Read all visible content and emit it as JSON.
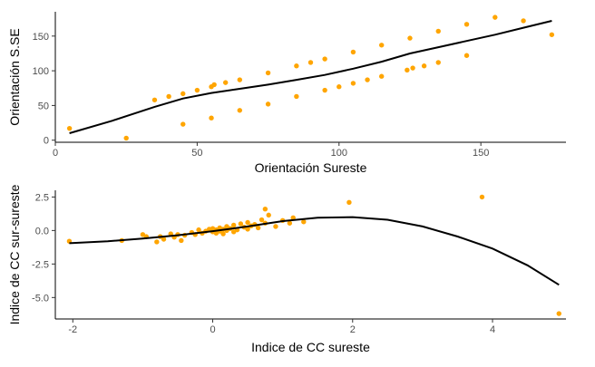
{
  "chart_data": [
    {
      "type": "scatter",
      "xlabel": "Orientación Sureste",
      "ylabel": "Orientación S.SE",
      "xlim": [
        0,
        180
      ],
      "ylim": [
        -3,
        185
      ],
      "x_ticks": [
        0,
        50,
        100,
        150
      ],
      "y_ticks": [
        0,
        50,
        100,
        150
      ],
      "x_tick_labels": [
        "0",
        "50",
        "100",
        "150"
      ],
      "y_tick_labels": [
        "0",
        "50",
        "100",
        "150"
      ],
      "grid": false,
      "point_color": "#FFA500",
      "line_color": "#000000",
      "points": [
        [
          5,
          17
        ],
        [
          25,
          3
        ],
        [
          35,
          58
        ],
        [
          40,
          63
        ],
        [
          45,
          67
        ],
        [
          45,
          23
        ],
        [
          50,
          72
        ],
        [
          55,
          77
        ],
        [
          56,
          80
        ],
        [
          55,
          32
        ],
        [
          60,
          83
        ],
        [
          65,
          87
        ],
        [
          65,
          43
        ],
        [
          75,
          97
        ],
        [
          75,
          52
        ],
        [
          85,
          107
        ],
        [
          85,
          63
        ],
        [
          90,
          112
        ],
        [
          95,
          117
        ],
        [
          95,
          72
        ],
        [
          100,
          77
        ],
        [
          105,
          127
        ],
        [
          105,
          82
        ],
        [
          110,
          87
        ],
        [
          115,
          137
        ],
        [
          115,
          92
        ],
        [
          124,
          101
        ],
        [
          125,
          147
        ],
        [
          126,
          104
        ],
        [
          130,
          107
        ],
        [
          135,
          157
        ],
        [
          135,
          112
        ],
        [
          145,
          167
        ],
        [
          145,
          122
        ],
        [
          155,
          177
        ],
        [
          165,
          172
        ],
        [
          175,
          152
        ]
      ],
      "smooth_line": [
        [
          5,
          10
        ],
        [
          20,
          28
        ],
        [
          35,
          48
        ],
        [
          45,
          60
        ],
        [
          55,
          68
        ],
        [
          65,
          74
        ],
        [
          75,
          80
        ],
        [
          85,
          87
        ],
        [
          95,
          94
        ],
        [
          105,
          103
        ],
        [
          115,
          113
        ],
        [
          125,
          125
        ],
        [
          135,
          134
        ],
        [
          145,
          143
        ],
        [
          155,
          152
        ],
        [
          165,
          162
        ],
        [
          175,
          172
        ]
      ]
    },
    {
      "type": "scatter",
      "xlabel": "Indice de CC sureste",
      "ylabel": "Indice de CC sur-sureste",
      "xlim": [
        -2.25,
        5.05
      ],
      "ylim": [
        -6.6,
        3.0
      ],
      "x_ticks": [
        -2,
        0,
        2,
        4
      ],
      "y_ticks": [
        2.5,
        0.0,
        -2.5,
        -5.0
      ],
      "x_tick_labels": [
        "-2",
        "0",
        "2",
        "4"
      ],
      "y_tick_labels": [
        "2.5",
        "0.0",
        "-2.5",
        "-5.0"
      ],
      "grid": false,
      "point_color": "#FFA500",
      "line_color": "#000000",
      "points": [
        [
          -2.05,
          -0.8
        ],
        [
          -1.3,
          -0.75
        ],
        [
          -1.0,
          -0.3
        ],
        [
          -0.95,
          -0.45
        ],
        [
          -0.8,
          -0.85
        ],
        [
          -0.75,
          -0.45
        ],
        [
          -0.7,
          -0.65
        ],
        [
          -0.6,
          -0.25
        ],
        [
          -0.55,
          -0.5
        ],
        [
          -0.5,
          -0.3
        ],
        [
          -0.45,
          -0.75
        ],
        [
          -0.4,
          -0.35
        ],
        [
          -0.3,
          -0.15
        ],
        [
          -0.25,
          -0.3
        ],
        [
          -0.2,
          0.05
        ],
        [
          -0.15,
          -0.2
        ],
        [
          -0.1,
          -0.05
        ],
        [
          -0.05,
          0.1
        ],
        [
          0.0,
          0.15
        ],
        [
          0.0,
          -0.1
        ],
        [
          0.05,
          -0.2
        ],
        [
          0.05,
          0.05
        ],
        [
          0.1,
          0.2
        ],
        [
          0.1,
          -0.05
        ],
        [
          0.15,
          0.1
        ],
        [
          0.15,
          -0.25
        ],
        [
          0.2,
          0.3
        ],
        [
          0.2,
          0.0
        ],
        [
          0.25,
          0.15
        ],
        [
          0.3,
          0.4
        ],
        [
          0.3,
          -0.1
        ],
        [
          0.35,
          0.05
        ],
        [
          0.4,
          0.5
        ],
        [
          0.45,
          0.25
        ],
        [
          0.5,
          0.6
        ],
        [
          0.5,
          0.1
        ],
        [
          0.55,
          0.35
        ],
        [
          0.6,
          0.45
        ],
        [
          0.65,
          0.2
        ],
        [
          0.7,
          0.8
        ],
        [
          0.75,
          0.55
        ],
        [
          0.75,
          1.6
        ],
        [
          0.8,
          1.15
        ],
        [
          0.9,
          0.3
        ],
        [
          1.0,
          0.75
        ],
        [
          1.1,
          0.55
        ],
        [
          1.15,
          0.95
        ],
        [
          1.3,
          0.65
        ],
        [
          1.95,
          2.1
        ],
        [
          3.85,
          2.5
        ],
        [
          4.95,
          -6.2
        ]
      ],
      "smooth_line": [
        [
          -2.05,
          -0.95
        ],
        [
          -1.5,
          -0.8
        ],
        [
          -1.0,
          -0.6
        ],
        [
          -0.5,
          -0.35
        ],
        [
          0.0,
          -0.05
        ],
        [
          0.5,
          0.3
        ],
        [
          1.0,
          0.7
        ],
        [
          1.5,
          0.95
        ],
        [
          2.0,
          1.0
        ],
        [
          2.5,
          0.8
        ],
        [
          3.0,
          0.3
        ],
        [
          3.5,
          -0.45
        ],
        [
          4.0,
          -1.35
        ],
        [
          4.5,
          -2.6
        ],
        [
          4.95,
          -4.05
        ]
      ]
    }
  ]
}
